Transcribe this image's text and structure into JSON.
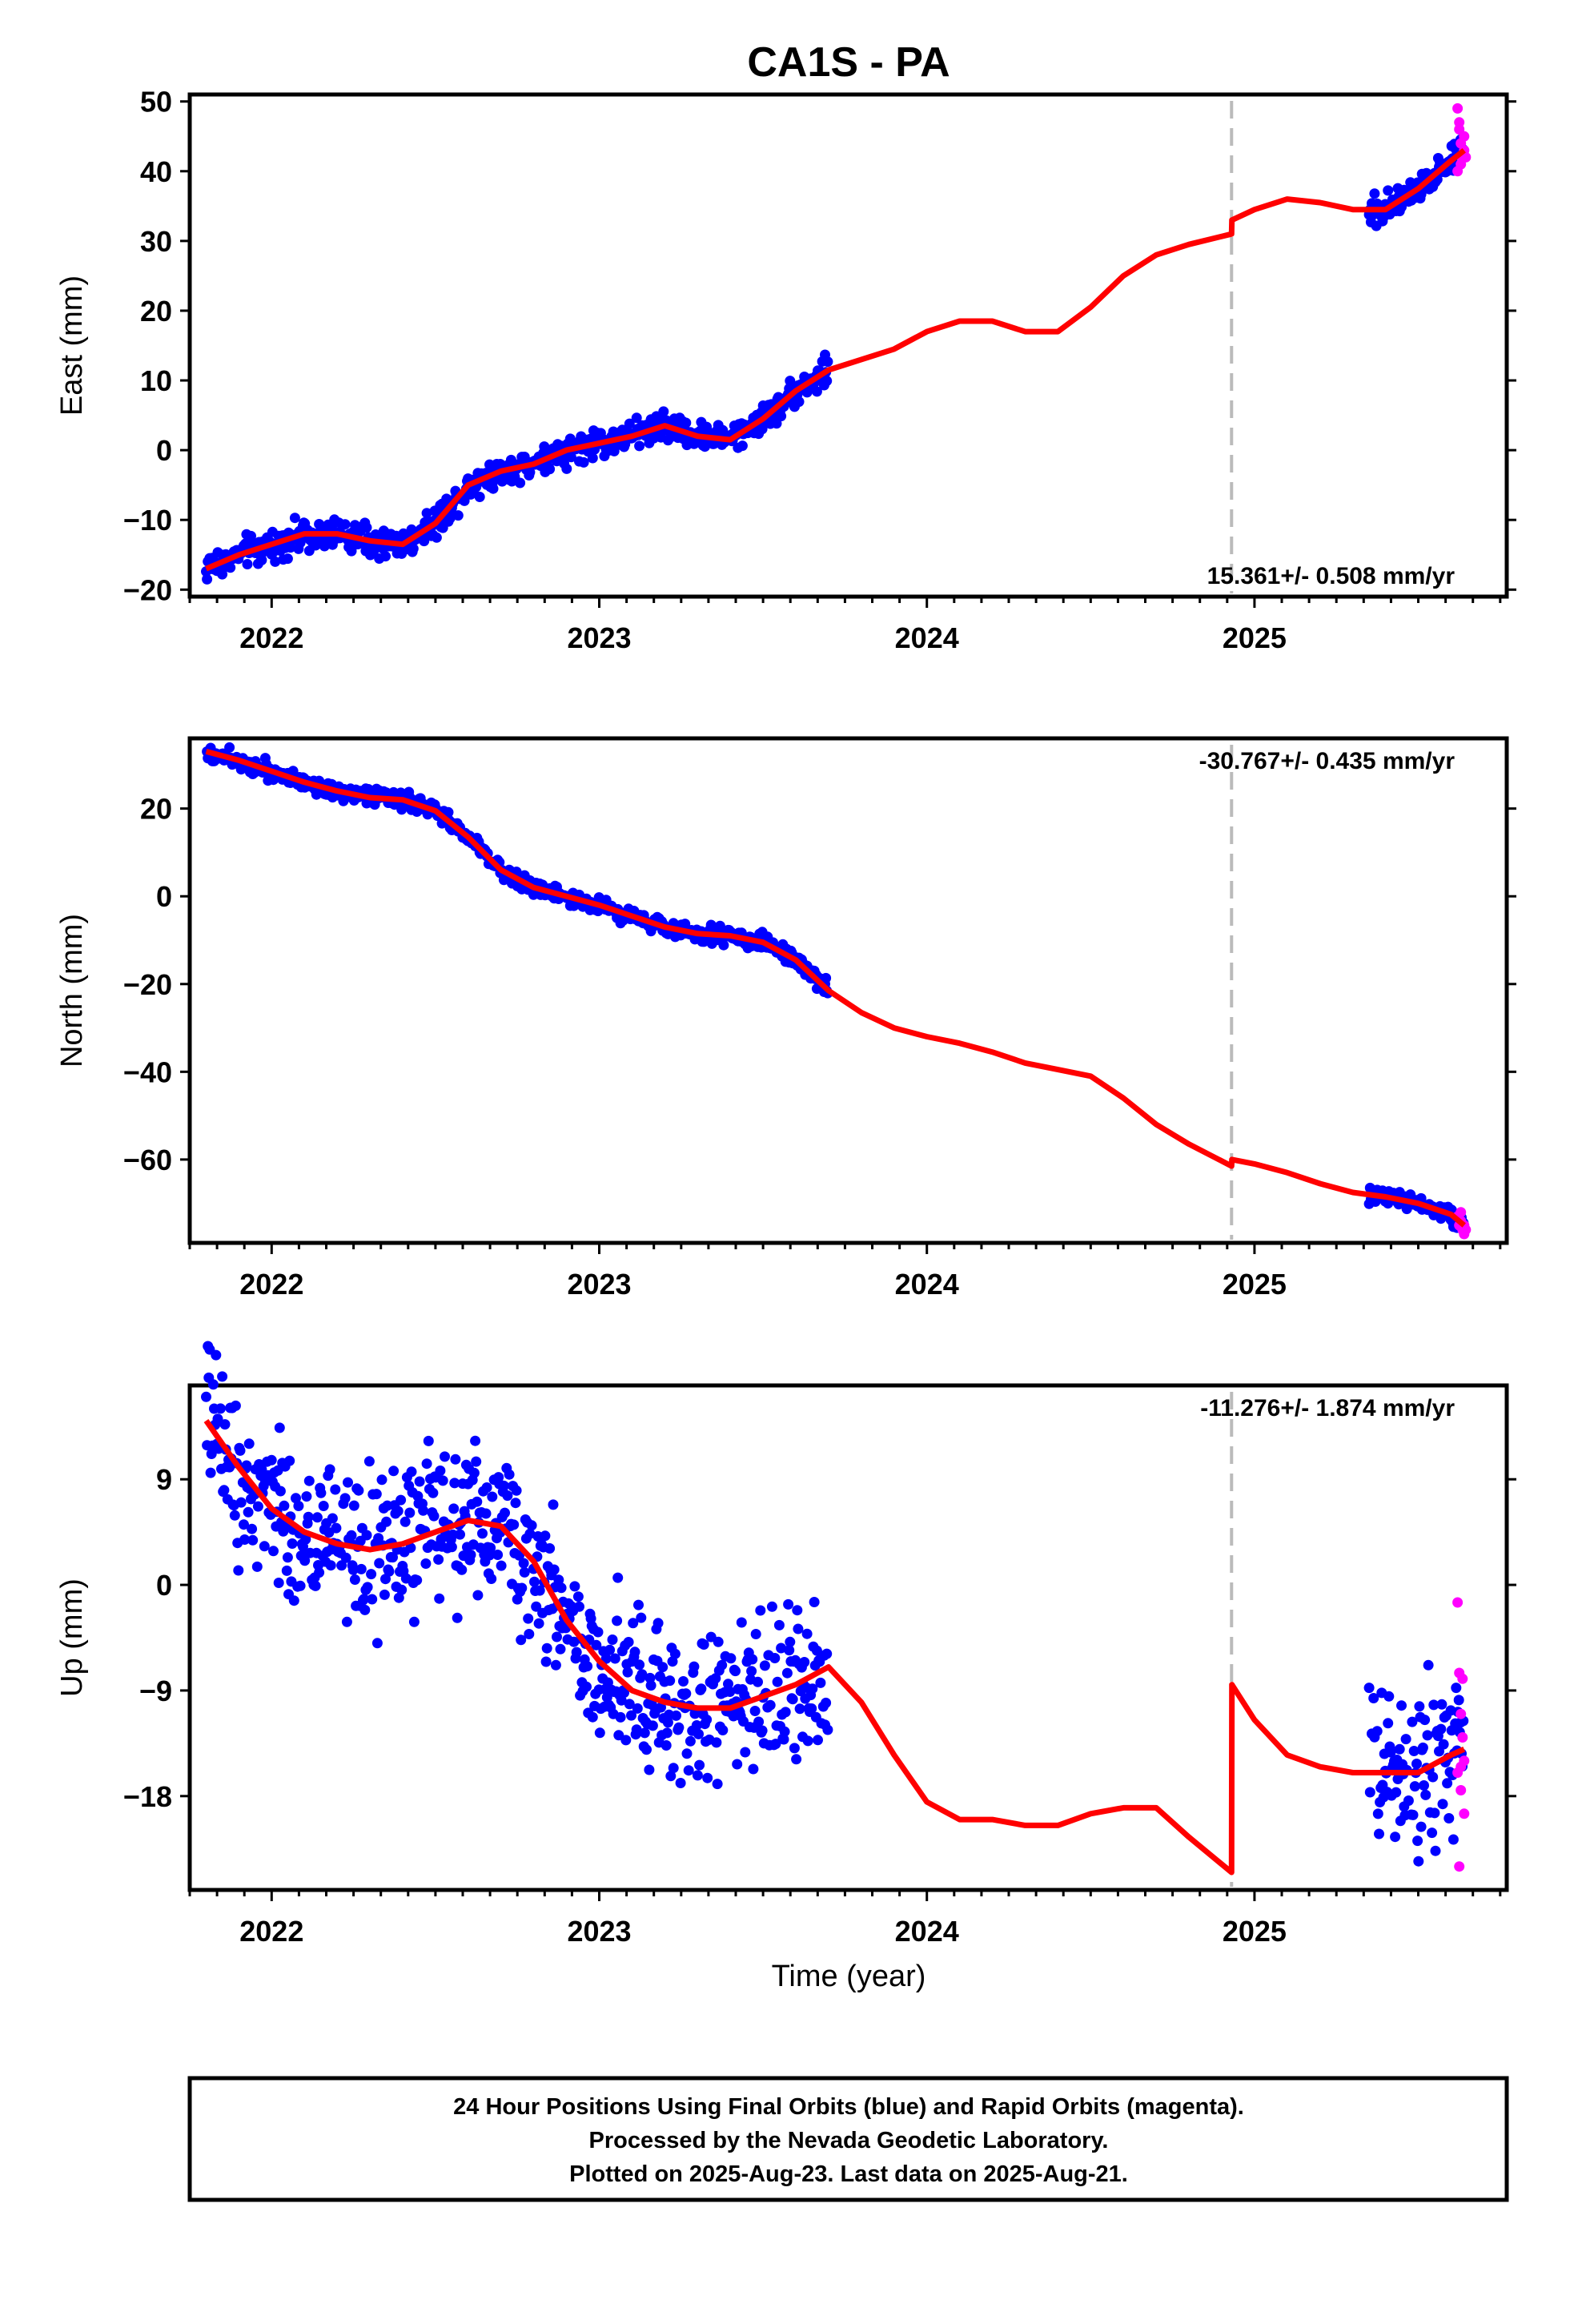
{
  "title": "CA1S - PA",
  "xlabel": "Time (year)",
  "footer": {
    "line1": "24 Hour Positions Using Final Orbits (blue) and Rapid Orbits (magenta).",
    "line2": "Processed by the Nevada Geodetic Laboratory.",
    "line3": "Plotted on 2025-Aug-23. Last data on 2025-Aug-21."
  },
  "colors": {
    "final": "#0000ff",
    "rapid": "#ff00ff",
    "model": "#ff0000",
    "step_line": "#bbbbbb"
  },
  "chart_data": [
    {
      "type": "scatter",
      "name": "east",
      "ylabel": "East (mm)",
      "rate_label": "15.361+/- 0.508 mm/yr",
      "rate_position": "bottom-right",
      "xlim": [
        2021.75,
        2025.77
      ],
      "ylim": [
        -21,
        51
      ],
      "yticks": [
        -20,
        -10,
        0,
        10,
        20,
        30,
        40,
        50
      ],
      "xticks": [
        2022,
        2023,
        2024,
        2025
      ],
      "step_epoch": 2024.93,
      "noise": 1.0,
      "model": {
        "x": [
          2021.8,
          2021.9,
          2022.0,
          2022.1,
          2022.2,
          2022.3,
          2022.4,
          2022.5,
          2022.6,
          2022.7,
          2022.8,
          2022.9,
          2023.0,
          2023.1,
          2023.2,
          2023.3,
          2023.4,
          2023.5,
          2023.6,
          2023.7,
          2023.8,
          2023.9,
          2024.0,
          2024.1,
          2024.2,
          2024.3,
          2024.4,
          2024.5,
          2024.6,
          2024.7,
          2024.8,
          2024.93,
          2024.931,
          2025.0,
          2025.1,
          2025.2,
          2025.3,
          2025.4,
          2025.5,
          2025.6,
          2025.64
        ],
        "y": [
          -17.0,
          -15.0,
          -13.5,
          -12.0,
          -12.0,
          -13.0,
          -13.5,
          -10.5,
          -5.0,
          -3.0,
          -2.0,
          0.0,
          1.0,
          2.0,
          3.5,
          2.0,
          1.5,
          4.5,
          8.5,
          11.5,
          13.0,
          14.5,
          17.0,
          18.5,
          18.5,
          17.0,
          17.0,
          20.5,
          25.0,
          28.0,
          29.5,
          31.0,
          33.0,
          34.5,
          36.0,
          35.5,
          34.5,
          34.5,
          37.5,
          41.5,
          43.0
        ]
      },
      "final_ranges": [
        [
          2021.8,
          2023.7
        ],
        [
          2025.35,
          2025.64
        ]
      ],
      "rapid": {
        "x": [
          2025.62,
          2025.625,
          2025.63,
          2025.635,
          2025.64,
          2025.62,
          2025.64,
          2025.645,
          2025.63,
          2025.625
        ],
        "y": [
          49,
          46,
          44,
          42,
          43,
          40,
          45,
          42,
          41,
          47
        ]
      }
    },
    {
      "type": "scatter",
      "name": "north",
      "ylabel": "North (mm)",
      "rate_label": "-30.767+/- 0.435 mm/yr",
      "rate_position": "top-right",
      "xlim": [
        2021.75,
        2025.77
      ],
      "ylim": [
        -79,
        36
      ],
      "yticks": [
        -60,
        -40,
        -20,
        0,
        20
      ],
      "xticks": [
        2022,
        2023,
        2024,
        2025
      ],
      "step_epoch": 2024.93,
      "noise": 0.9,
      "model": {
        "x": [
          2021.8,
          2021.9,
          2022.0,
          2022.1,
          2022.2,
          2022.3,
          2022.4,
          2022.5,
          2022.6,
          2022.7,
          2022.8,
          2022.9,
          2023.0,
          2023.1,
          2023.2,
          2023.3,
          2023.4,
          2023.5,
          2023.6,
          2023.7,
          2023.8,
          2023.9,
          2024.0,
          2024.1,
          2024.2,
          2024.3,
          2024.4,
          2024.5,
          2024.6,
          2024.7,
          2024.8,
          2024.93,
          2024.931,
          2025.0,
          2025.1,
          2025.2,
          2025.3,
          2025.4,
          2025.5,
          2025.6,
          2025.64
        ],
        "y": [
          33.0,
          31.0,
          28.5,
          26.0,
          24.0,
          22.5,
          22.0,
          19.5,
          13.5,
          6.0,
          2.0,
          0.0,
          -2.0,
          -4.5,
          -7.0,
          -8.5,
          -9.0,
          -10.5,
          -14.5,
          -21.5,
          -26.5,
          -30.0,
          -32.0,
          -33.5,
          -35.5,
          -38.0,
          -39.5,
          -41.0,
          -46.0,
          -52.0,
          -56.5,
          -61.5,
          -60.0,
          -61.0,
          -63.0,
          -65.5,
          -67.5,
          -68.5,
          -70.0,
          -72.5,
          -75.0
        ]
      },
      "final_ranges": [
        [
          2021.8,
          2023.7
        ],
        [
          2025.35,
          2025.64
        ]
      ],
      "rapid": {
        "x": [
          2025.62,
          2025.625,
          2025.63,
          2025.635,
          2025.64,
          2025.645,
          2025.63,
          2025.64
        ],
        "y": [
          -73,
          -75,
          -74,
          -76,
          -77,
          -76,
          -72,
          -75
        ]
      }
    },
    {
      "type": "scatter",
      "name": "up",
      "ylabel": "Up (mm)",
      "rate_label": "-11.276+/- 1.874 mm/yr",
      "rate_position": "top-right",
      "xlim": [
        2021.75,
        2025.77
      ],
      "ylim": [
        -26,
        17
      ],
      "yticks": [
        -18,
        -9,
        0,
        9
      ],
      "xticks": [
        2022,
        2023,
        2024,
        2025
      ],
      "step_epoch": 2024.93,
      "noise": 3.2,
      "model": {
        "x": [
          2021.8,
          2021.9,
          2022.0,
          2022.1,
          2022.2,
          2022.3,
          2022.4,
          2022.5,
          2022.6,
          2022.7,
          2022.8,
          2022.9,
          2023.0,
          2023.1,
          2023.2,
          2023.3,
          2023.4,
          2023.5,
          2023.6,
          2023.7,
          2023.8,
          2023.9,
          2024.0,
          2024.1,
          2024.2,
          2024.3,
          2024.4,
          2024.5,
          2024.6,
          2024.7,
          2024.8,
          2024.93,
          2024.931,
          2025.0,
          2025.1,
          2025.2,
          2025.3,
          2025.4,
          2025.5,
          2025.6,
          2025.64
        ],
        "y": [
          14.0,
          10.0,
          6.5,
          4.5,
          3.5,
          3.0,
          3.5,
          4.5,
          5.5,
          5.0,
          2.0,
          -3.0,
          -6.5,
          -9.0,
          -10.0,
          -10.5,
          -10.5,
          -9.5,
          -8.5,
          -7.0,
          -10.0,
          -14.5,
          -18.5,
          -20.0,
          -20.0,
          -20.5,
          -20.5,
          -19.5,
          -19.0,
          -19.0,
          -21.5,
          -24.5,
          -8.5,
          -11.5,
          -14.5,
          -15.5,
          -16.0,
          -16.0,
          -16.0,
          -14.5,
          -14.0
        ]
      },
      "final_ranges": [
        [
          2021.8,
          2023.7
        ],
        [
          2025.35,
          2025.64
        ]
      ],
      "rapid": {
        "x": [
          2025.62,
          2025.625,
          2025.63,
          2025.635,
          2025.64,
          2025.62,
          2025.63,
          2025.64,
          2025.635,
          2025.625,
          2025.63
        ],
        "y": [
          -1.5,
          -7.5,
          -11,
          -13,
          -15,
          -16,
          -17.5,
          -19.5,
          -8,
          -24,
          -15.5
        ]
      }
    }
  ]
}
